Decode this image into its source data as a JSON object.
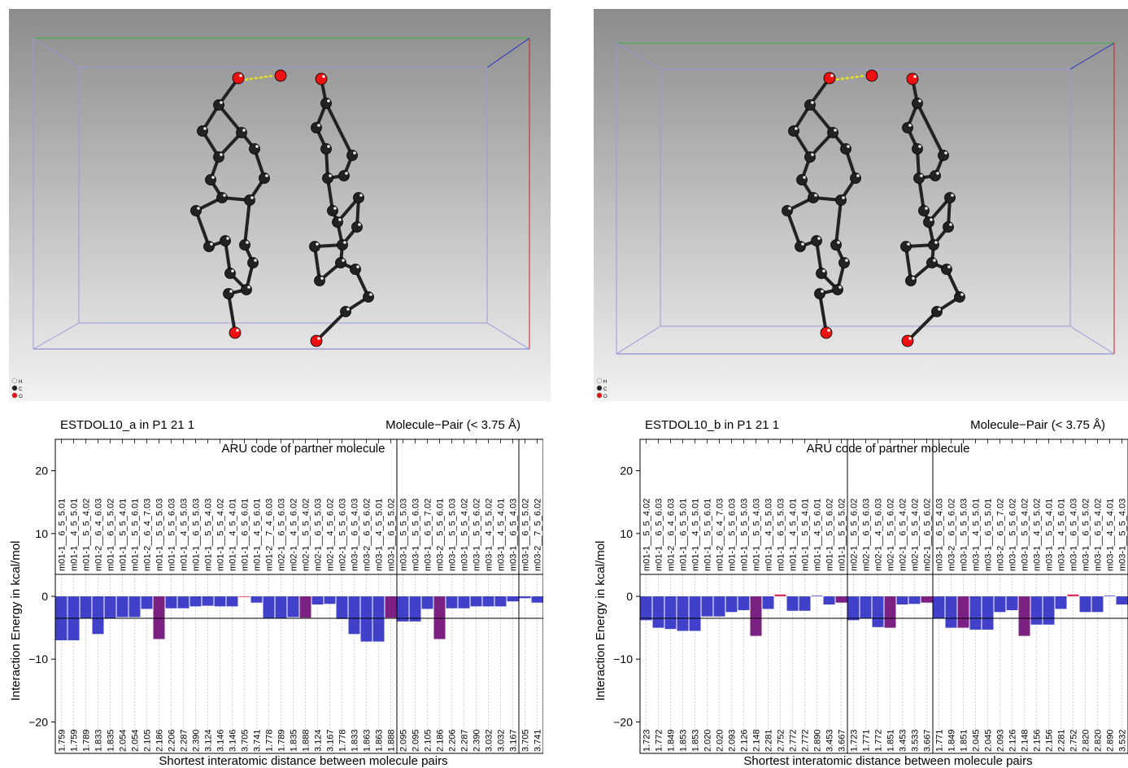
{
  "legend": [
    "H",
    "C",
    "O"
  ],
  "colors": {
    "fill_normal": "#4040c8",
    "fill_hbond": "#7b2182",
    "fill_hbond_faint": "#e03060",
    "oxygen": "#ee1111",
    "carbon": "#222222",
    "hydrogen": "#eeeeee",
    "hbond": "#e8e020"
  },
  "chart_data": [
    {
      "type": "bar",
      "title": "ESTDOL10_a in P1 21 1",
      "subtitle": "Molecule−Pair (< 3.75 Å)",
      "top_axis_label": "ARU code of partner molecule",
      "ylabel": "Interaction Energy in kcal/mol",
      "xlabel": "Shortest interatomic distance between molecule pairs",
      "ylim": [
        -25,
        25
      ],
      "yticks": [
        "20",
        "10",
        "0",
        "−10",
        "−20"
      ],
      "ytick_values": [
        20,
        10,
        0,
        -10,
        -20
      ],
      "hlines": [
        3.5,
        -3.5
      ],
      "group_breaks": [
        28,
        38
      ],
      "aru_codes": [
        "m01-1__6_5_5.01",
        "m01-1__4_5_5.01",
        "m01-1__5_5_4.02",
        "m01-2__6_4_6.03",
        "m01-1__6_5_5.02",
        "m01-1__5_5_4.01",
        "m01-1__5_5_6.01",
        "m01-2__6_4_7.03",
        "m01-1__5_5_5.03",
        "m01-1__5_5_6.03",
        "m01-1__4_5_5.03",
        "m01-1__6_5_5.03",
        "m01-1__5_5_4.03",
        "m01-1__5_5_4.02",
        "m01-1__4_5_4.01",
        "m01-1__6_5_6.01",
        "m01-1__4_5_6.01",
        "m01-2__7_4_6.03",
        "m02-1__6_5_6.03",
        "m02-1__4_5_6.02",
        "m02-1__5_5_4.02",
        "m02-1__6_5_5.03",
        "m02-1__4_5_6.02",
        "m02-1__5_5_6.03",
        "m03-1__6_5_4.03",
        "m03-2__6_5_6.02",
        "m03-1__4_5_5.01",
        "m03-1__6_5_5.02",
        "m03-1__5_5_5.03",
        "m03-1__5_5_6.03",
        "m03-1__6_5_7.02",
        "m03-2__5_5_6.01",
        "m03-1__5_5_5.03",
        "m03-1__5_5_4.02",
        "m03-1__5_5_6.02",
        "m03-1__4_5_5.02",
        "m03-1__4_5_4.01",
        "m03-1__6_5_4.03",
        "m03-1__6_5_5.02",
        "m03-2__7_5_6.02"
      ],
      "categories": [
        "1.759",
        "1.759",
        "1.789",
        "1.833",
        "1.835",
        "2.054",
        "2.054",
        "2.105",
        "2.186",
        "2.206",
        "2.287",
        "2.390",
        "3.124",
        "3.146",
        "3.146",
        "3.705",
        "3.741",
        "1.778",
        "1.789",
        "1.835",
        "1.888",
        "3.124",
        "3.167",
        "1.778",
        "1.833",
        "1.863",
        "1.863",
        "1.888",
        "2.095",
        "2.095",
        "2.105",
        "2.186",
        "2.206",
        "2.287",
        "2.390",
        "3.032",
        "3.032",
        "3.167",
        "3.705",
        "3.741"
      ],
      "values": [
        -7.0,
        -7.0,
        -3.5,
        -6.0,
        -3.5,
        -3.3,
        -3.3,
        -2.0,
        -6.8,
        -1.9,
        -1.9,
        -1.6,
        -1.5,
        -1.6,
        -1.6,
        -0.1,
        -1.0,
        -3.5,
        -3.5,
        -3.3,
        -3.4,
        -1.3,
        -1.2,
        -3.6,
        -6.0,
        -7.2,
        -7.2,
        -3.4,
        -4.0,
        -4.0,
        -2.0,
        -6.8,
        -1.9,
        -1.9,
        -1.6,
        -1.6,
        -1.6,
        -0.8,
        -0.3,
        -1.0
      ],
      "hbond_indices": [
        8,
        20,
        27,
        31
      ],
      "faint_indices": [
        15
      ]
    },
    {
      "type": "bar",
      "title": "ESTDOL10_b in P1 21 1",
      "subtitle": "Molecule−Pair (< 3.75 Å)",
      "top_axis_label": "ARU code of partner molecule",
      "ylabel": "Interaction Energy in kcal/mol",
      "xlabel": "Shortest interatomic distance between molecule pairs",
      "ylim": [
        -25,
        25
      ],
      "yticks": [
        "20",
        "10",
        "0",
        "−10",
        "−20"
      ],
      "ytick_values": [
        20,
        10,
        0,
        -10,
        -20
      ],
      "hlines": [
        3.5,
        -3.5
      ],
      "group_breaks": [
        17,
        24
      ],
      "aru_codes": [
        "m01-1__5_5_4.02",
        "m01-1__6_5_6.03",
        "m01-2__6_4_6.03",
        "m01-1__6_5_5.01",
        "m01-1__4_5_5.01",
        "m01-1__5_5_6.01",
        "m01-2__6_4_7.03",
        "m01-1__5_5_6.03",
        "m01-1__5_5_5.03",
        "m01-1__5_5_4.03",
        "m01-1__4_5_5.03",
        "m01-1__6_5_5.03",
        "m01-1__4_5_4.01",
        "m01-1__5_5_4.01",
        "m01-1__4_5_6.01",
        "m01-1__5_5_6.02",
        "m01-1__5_5_5.02",
        "m02-1__5_5_6.02",
        "m02-1__6_5_6.03",
        "m02-1__4_5_6.03",
        "m02-1__5_5_6.02",
        "m02-1__6_5_4.02",
        "m02-1__5_5_4.02",
        "m02-1__6_5_6.02",
        "m03-1__6_5_4.03",
        "m03-2__6_5_6.02",
        "m03-1__5_5_5.03",
        "m03-1__4_5_5.01",
        "m03-1__6_5_5.01",
        "m03-2__6_5_7.02",
        "m03-1__5_5_6.02",
        "m03-1__5_5_4.02",
        "m03-1__4_5_5.02",
        "m03-1__5_5_4.01",
        "m03-1__4_5_6.01",
        "m03-1__6_5_4.03",
        "m03-1__6_5_5.02",
        "m03-1__6_5_4.02",
        "m03-1__4_5_4.01",
        "m03-1__5_5_4.03"
      ],
      "categories": [
        "1.723",
        "1.772",
        "1.849",
        "1.853",
        "1.853",
        "2.020",
        "2.020",
        "2.093",
        "2.126",
        "2.148",
        "2.281",
        "2.752",
        "2.772",
        "2.772",
        "2.890",
        "3.453",
        "3.667",
        "1.723",
        "1.771",
        "1.772",
        "1.851",
        "3.453",
        "3.533",
        "3.667",
        "1.771",
        "1.849",
        "1.851",
        "2.045",
        "2.045",
        "2.093",
        "2.126",
        "2.148",
        "2.156",
        "2.156",
        "2.281",
        "2.752",
        "2.820",
        "2.820",
        "2.890",
        "3.532"
      ],
      "values": [
        -3.8,
        -5.0,
        -5.2,
        -5.5,
        -5.5,
        -3.2,
        -3.2,
        -2.5,
        -2.2,
        -6.3,
        -2.0,
        0.3,
        -2.3,
        -2.3,
        0.1,
        -1.3,
        -1.0,
        -3.8,
        -3.5,
        -4.9,
        -5.0,
        -1.3,
        -1.2,
        -1.0,
        -3.5,
        -5.0,
        -5.0,
        -5.3,
        -5.3,
        -2.5,
        -2.2,
        -6.3,
        -4.5,
        -4.5,
        -2.0,
        0.3,
        -2.5,
        -2.5,
        0.1,
        -1.3
      ],
      "hbond_indices": [
        9,
        16,
        20,
        23,
        26,
        31
      ],
      "faint_indices": [
        11,
        35
      ]
    }
  ]
}
